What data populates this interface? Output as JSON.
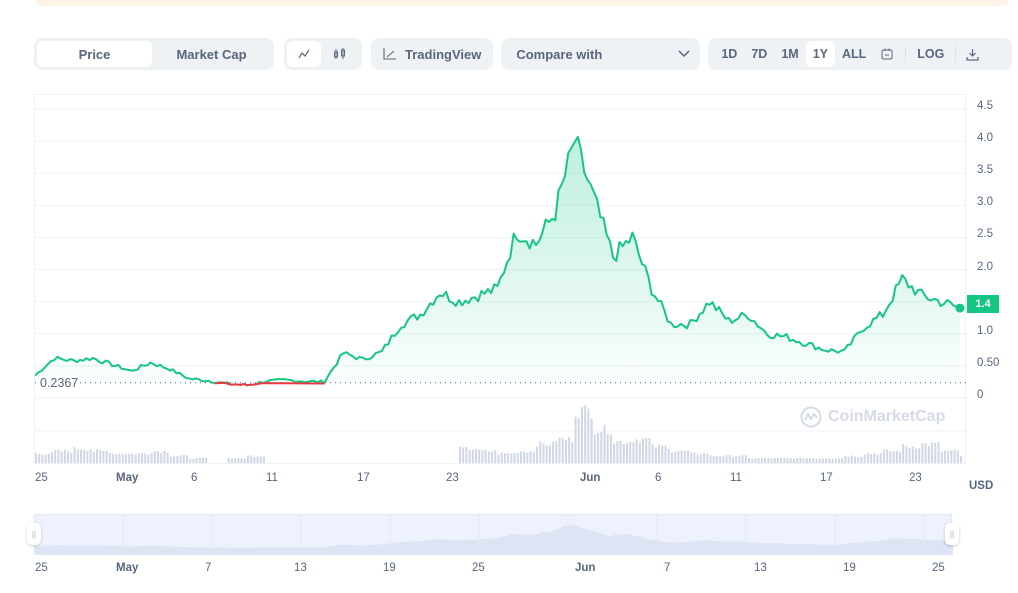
{
  "banner": {
    "color": "#fef4e8"
  },
  "toolbar": {
    "type_toggle": {
      "options": [
        "Price",
        "Market Cap"
      ],
      "active": "Price"
    },
    "chart_style": {
      "options": [
        "line-chart-icon",
        "candlestick-icon"
      ],
      "active": "line-chart-icon"
    },
    "tradingview_label": "TradingView",
    "compare_label": "Compare with",
    "ranges": [
      "1D",
      "7D",
      "1M",
      "1Y",
      "ALL"
    ],
    "active_range": "1Y",
    "log_label": "LOG"
  },
  "chart_data": {
    "type": "line",
    "title": "",
    "xlabel": "",
    "ylabel": "USD",
    "ylim": [
      0,
      4.5
    ],
    "yticks": [
      "4.5",
      "4.0",
      "3.5",
      "3.0",
      "2.5",
      "2.0",
      "1.4",
      "1.0",
      "0.50",
      "0"
    ],
    "xticks": [
      "25",
      "May",
      "6",
      "11",
      "17",
      "23",
      "Jun",
      "6",
      "11",
      "17",
      "23"
    ],
    "baseline_value": 0.2367,
    "baseline_label": "0.2367",
    "current_price": 1.4,
    "current_price_label": "1.4",
    "currency": "USD",
    "colors": {
      "up": "#16c784",
      "down": "#ea3943",
      "volume": "#cfd6e4"
    },
    "series": [
      {
        "name": "Price",
        "points": [
          {
            "x": 0,
            "y": 0.35
          },
          {
            "x": 1,
            "y": 0.62
          },
          {
            "x": 2,
            "y": 0.58
          },
          {
            "x": 3,
            "y": 0.62
          },
          {
            "x": 4,
            "y": 0.52
          },
          {
            "x": 5,
            "y": 0.42
          },
          {
            "x": 6,
            "y": 0.55
          },
          {
            "x": 7,
            "y": 0.45
          },
          {
            "x": 8,
            "y": 0.3
          },
          {
            "x": 9,
            "y": 0.27
          },
          {
            "x": 10,
            "y": 0.22
          },
          {
            "x": 11,
            "y": 0.2
          },
          {
            "x": 12,
            "y": 0.26
          },
          {
            "x": 13,
            "y": 0.28
          },
          {
            "x": 14,
            "y": 0.26
          },
          {
            "x": 15,
            "y": 0.25
          },
          {
            "x": 16,
            "y": 0.7
          },
          {
            "x": 17,
            "y": 0.6
          },
          {
            "x": 18,
            "y": 0.72
          },
          {
            "x": 19,
            "y": 1.15
          },
          {
            "x": 20,
            "y": 1.3
          },
          {
            "x": 21,
            "y": 1.65
          },
          {
            "x": 22,
            "y": 1.5
          },
          {
            "x": 23,
            "y": 1.6
          },
          {
            "x": 24,
            "y": 1.7
          },
          {
            "x": 25,
            "y": 2.6
          },
          {
            "x": 26,
            "y": 2.4
          },
          {
            "x": 27,
            "y": 2.9
          },
          {
            "x": 28,
            "y": 4.0
          },
          {
            "x": 29,
            "y": 3.1
          },
          {
            "x": 30,
            "y": 2.2
          },
          {
            "x": 31,
            "y": 2.5
          },
          {
            "x": 32,
            "y": 1.7
          },
          {
            "x": 33,
            "y": 1.15
          },
          {
            "x": 34,
            "y": 1.15
          },
          {
            "x": 35,
            "y": 1.5
          },
          {
            "x": 36,
            "y": 1.2
          },
          {
            "x": 37,
            "y": 1.3
          },
          {
            "x": 38,
            "y": 1.0
          },
          {
            "x": 39,
            "y": 0.95
          },
          {
            "x": 40,
            "y": 0.85
          },
          {
            "x": 41,
            "y": 0.75
          },
          {
            "x": 42,
            "y": 0.72
          },
          {
            "x": 43,
            "y": 1.1
          },
          {
            "x": 44,
            "y": 1.3
          },
          {
            "x": 45,
            "y": 1.85
          },
          {
            "x": 46,
            "y": 1.6
          },
          {
            "x": 47,
            "y": 1.5
          },
          {
            "x": 48,
            "y": 1.4
          }
        ]
      },
      {
        "name": "Volume",
        "values": [
          4,
          5,
          6,
          5,
          4,
          4,
          5,
          3,
          2,
          0,
          2,
          3,
          0,
          0,
          0,
          0,
          0,
          0,
          0,
          0,
          0,
          0,
          6,
          5,
          4,
          5,
          8,
          10,
          22,
          14,
          9,
          10,
          7,
          5,
          4,
          3,
          3,
          2,
          2,
          2,
          2,
          2,
          3,
          4,
          5,
          7,
          8,
          5,
          3
        ]
      }
    ]
  },
  "watermark": "CoinMarketCap",
  "navigator": {
    "xticks": [
      "25",
      "May",
      "7",
      "13",
      "19",
      "25",
      "Jun",
      "7",
      "13",
      "19",
      "25"
    ]
  }
}
